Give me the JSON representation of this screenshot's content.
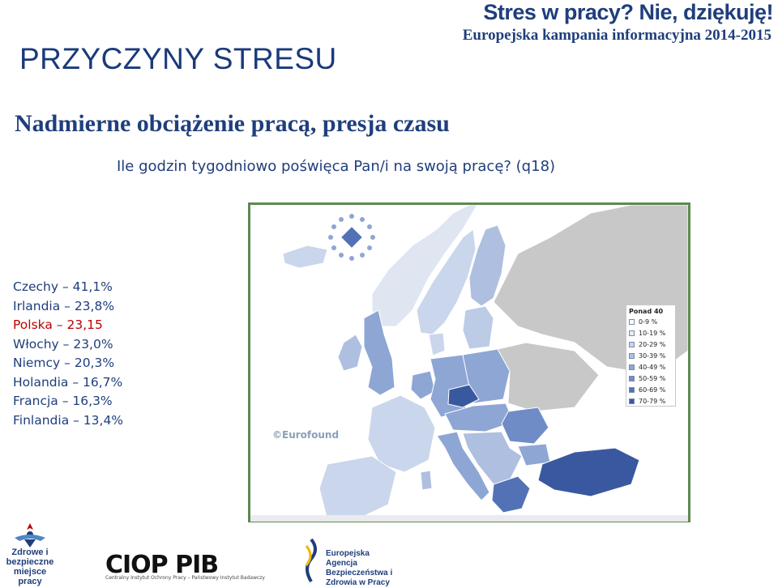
{
  "header": {
    "campaign_title": "Stres w pracy? Nie, dziękuję!",
    "campaign_subtitle": "Europejska kampania informacyjna 2014-2015",
    "page_title": "PRZYCZYNY STRESU"
  },
  "section": {
    "title": "Nadmierne obciążenie pracą, presja czasu",
    "question": "Ile godzin tygodniowo poświęca Pan/i na swoją pracę? (q18)"
  },
  "stats": [
    {
      "text": "Czechy – 41,1%",
      "highlight": false
    },
    {
      "text": "Irlandia – 23,8%",
      "highlight": false
    },
    {
      "text": "Polska – 23,15",
      "highlight": true
    },
    {
      "text": "Włochy – 23,0%",
      "highlight": false
    },
    {
      "text": "Niemcy – 20,3%",
      "highlight": false
    },
    {
      "text": "Holandia – 16,7%",
      "highlight": false
    },
    {
      "text": "Francja – 16,3%",
      "highlight": false
    },
    {
      "text": "Finlandia – 13,4%",
      "highlight": false
    }
  ],
  "map": {
    "watermark": "©Eurofound",
    "legend_title": "Ponad 40",
    "legend": [
      {
        "label": "0-9 %",
        "color": "#ffffff"
      },
      {
        "label": "10-19 %",
        "color": "#e6ecf6"
      },
      {
        "label": "20-29 %",
        "color": "#cad6ec"
      },
      {
        "label": "30-39 %",
        "color": "#aebfe0"
      },
      {
        "label": "40-49 %",
        "color": "#8ea6d4"
      },
      {
        "label": "50-59 %",
        "color": "#6f8cc7"
      },
      {
        "label": "60-69 %",
        "color": "#5372b6"
      },
      {
        "label": "70-79 %",
        "color": "#3a58a0"
      }
    ],
    "outside_color": "#c8c8c8",
    "sea_color": "#ffffff"
  },
  "footer": {
    "logo1_text": "Zdrowe i bezpieczne miejsce pracy",
    "logo2_text": "CIOP PIB",
    "logo2_subtitle": "Centralny Instytut Ochrony Pracy – Państwowy Instytut Badawczy",
    "logo3_text": "Europejska Agencja Bezpieczeństwa i Zdrowia w Pracy"
  }
}
